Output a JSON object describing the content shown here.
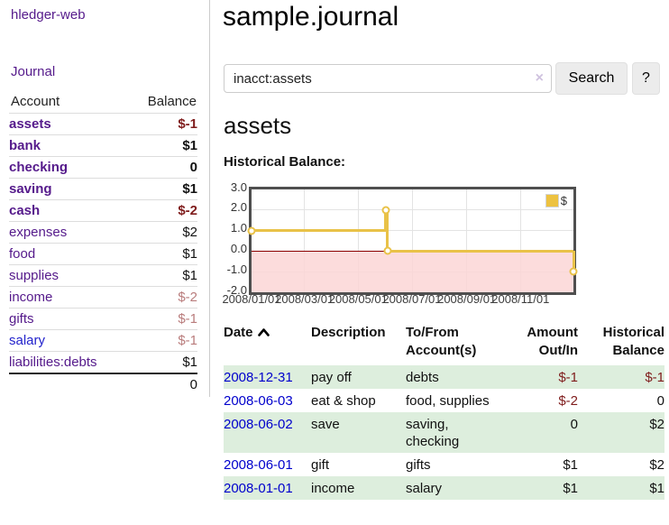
{
  "app": {
    "title": "hledger-web",
    "nav": {
      "journal": "Journal"
    }
  },
  "sidebar": {
    "columns": {
      "account": "Account",
      "balance": "Balance"
    },
    "accounts": [
      {
        "name": "assets",
        "depth": 1,
        "bold": true,
        "balance": "$-1",
        "balance_style": "neg"
      },
      {
        "name": "bank",
        "depth": 2,
        "bold": true,
        "balance": "$1",
        "balance_style": ""
      },
      {
        "name": "checking",
        "depth": 3,
        "bold": true,
        "balance": "0",
        "balance_style": ""
      },
      {
        "name": "saving",
        "depth": 3,
        "bold": true,
        "balance": "$1",
        "balance_style": ""
      },
      {
        "name": "cash",
        "depth": 2,
        "bold": true,
        "balance": "$-2",
        "balance_style": "neg"
      },
      {
        "name": "expenses",
        "depth": 1,
        "bold": false,
        "balance": "$2",
        "balance_style": ""
      },
      {
        "name": "food",
        "depth": 2,
        "bold": false,
        "balance": "$1",
        "balance_style": ""
      },
      {
        "name": "supplies",
        "depth": 2,
        "bold": false,
        "balance": "$1",
        "balance_style": ""
      },
      {
        "name": "income",
        "depth": 1,
        "bold": false,
        "balance": "$-2",
        "balance_style": "neg-light"
      },
      {
        "name": "gifts",
        "depth": 2,
        "bold": false,
        "balance": "$-1",
        "balance_style": "neg-light"
      },
      {
        "name": "salary",
        "depth": 2,
        "bold": false,
        "balance": "$-1",
        "balance_style": "neg-light",
        "link_style": "link-blue"
      },
      {
        "name": "liabilities:debts",
        "depth": 1,
        "bold": false,
        "balance": "$1",
        "balance_style": ""
      }
    ],
    "total": "0"
  },
  "header": {
    "title": "sample.journal"
  },
  "search": {
    "value": "inacct:assets",
    "clear_icon": "×",
    "button_label": "Search",
    "help_label": "?"
  },
  "account_page": {
    "heading": "assets",
    "chart_title": "Historical Balance:"
  },
  "chart_data": {
    "type": "line",
    "title": "Historical Balance",
    "step": true,
    "series": [
      {
        "name": "$",
        "x": [
          "2008-01-01",
          "2008-06-01",
          "2008-06-03",
          "2008-12-31"
        ],
        "y": [
          1.0,
          2.0,
          0.0,
          -1.0
        ]
      }
    ],
    "x_range": [
      "2008-01-01",
      "2008-12-31"
    ],
    "ylim": [
      -2.0,
      3.0
    ],
    "yticks": [
      "3.0",
      "2.0",
      "1.0",
      "0.0",
      "-1.0",
      "-2.0"
    ],
    "xticks": [
      "2008/01/01",
      "2008/03/01",
      "2008/05/01",
      "2008/07/01",
      "2008/09/01",
      "2008/11/01"
    ],
    "legend": {
      "position": "top-right",
      "entries": [
        "$"
      ]
    },
    "grid": true,
    "colors": {
      "line": "#e9c248",
      "negative_fill": "#fcdcdc",
      "zero_line": "#8b0000",
      "grid": "#e3e3e3"
    }
  },
  "register": {
    "columns": [
      "Date",
      "Description",
      "To/From\nAccount(s)",
      "Amount\nOut/In",
      "Historical\nBalance"
    ],
    "sort": {
      "column": "Date",
      "direction": "ascending"
    },
    "rows": [
      {
        "date": "2008-12-31",
        "description": "pay off",
        "accounts": "debts",
        "amount": "$-1",
        "amount_style": "neg",
        "balance": "$-1",
        "balance_style": "neg"
      },
      {
        "date": "2008-06-03",
        "description": "eat & shop",
        "accounts": "food, supplies",
        "amount": "$-2",
        "amount_style": "neg",
        "balance": "0",
        "balance_style": ""
      },
      {
        "date": "2008-06-02",
        "description": "save",
        "accounts": "saving,\nchecking",
        "amount": "0",
        "amount_style": "",
        "balance": "$2",
        "balance_style": ""
      },
      {
        "date": "2008-06-01",
        "description": "gift",
        "accounts": "gifts",
        "amount": "$1",
        "amount_style": "",
        "balance": "$2",
        "balance_style": ""
      },
      {
        "date": "2008-01-01",
        "description": "income",
        "accounts": "salary",
        "amount": "$1",
        "amount_style": "",
        "balance": "$1",
        "balance_style": ""
      }
    ]
  }
}
